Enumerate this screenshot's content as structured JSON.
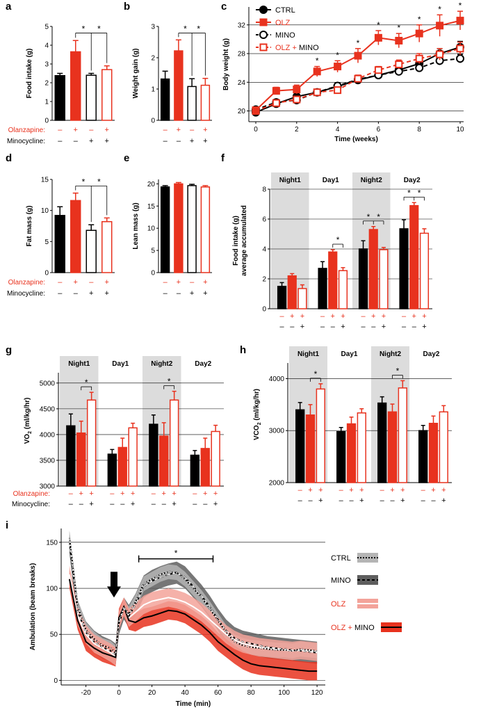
{
  "colors": {
    "ctrl": "#000000",
    "olz": "#e8321e",
    "mino_fill": "#ffffff",
    "mino_edge": "#000000",
    "shade": "#dcdcdc"
  },
  "row_labels": {
    "olanzapine": "Olanzapine:",
    "minocycline": "Minocycline:",
    "plus": "+",
    "minus": "–"
  },
  "chart_data": [
    {
      "panel": "a",
      "type": "bar",
      "ylabel": "Food intake (g)",
      "ylim": [
        0,
        5
      ],
      "yticks": [
        0,
        1,
        2,
        3,
        4,
        5
      ],
      "groups": [
        "CTRL",
        "OLZ",
        "MINO",
        "OLZ + MINO"
      ],
      "values": [
        2.38,
        3.65,
        2.4,
        2.7
      ],
      "errors": [
        0.12,
        0.6,
        0.1,
        0.2
      ],
      "olanzapine": [
        "–",
        "+",
        "–",
        "+"
      ],
      "minocycline": [
        "–",
        "–",
        "+",
        "+"
      ],
      "significance": [
        "*",
        "*"
      ]
    },
    {
      "panel": "b",
      "type": "bar",
      "ylabel": "Weight gain (g)",
      "ylim": [
        0,
        3
      ],
      "yticks": [
        0,
        1,
        2,
        3
      ],
      "groups": [
        "CTRL",
        "OLZ",
        "MINO",
        "OLZ + MINO"
      ],
      "values": [
        1.32,
        2.22,
        1.08,
        1.12
      ],
      "errors": [
        0.25,
        0.35,
        0.25,
        0.22
      ],
      "olanzapine": [
        "–",
        "+",
        "–",
        "+"
      ],
      "minocycline": [
        "–",
        "–",
        "+",
        "+"
      ],
      "significance": [
        "*",
        "*"
      ]
    },
    {
      "panel": "c",
      "type": "line",
      "xlabel": "Time (weeks)",
      "ylabel": "Body weight (g)",
      "xlim": [
        0,
        10
      ],
      "ylim": [
        18.5,
        34.5
      ],
      "xticks": [
        0,
        2,
        4,
        6,
        8,
        10
      ],
      "yticks": [
        20,
        24,
        28,
        32
      ],
      "x": [
        0,
        1,
        2,
        3,
        4,
        5,
        6,
        7,
        8,
        9,
        10
      ],
      "series": [
        {
          "name": "CTRL",
          "values": [
            19.8,
            21.0,
            22.0,
            22.6,
            23.4,
            24.3,
            25.0,
            25.7,
            26.6,
            28.0,
            28.9
          ],
          "errors": [
            0.3,
            0.4,
            0.4,
            0.4,
            0.5,
            0.5,
            0.5,
            0.6,
            0.6,
            0.7,
            0.8
          ]
        },
        {
          "name": "OLZ",
          "values": [
            20.1,
            22.8,
            23.0,
            25.5,
            26.2,
            27.7,
            30.2,
            29.8,
            30.8,
            31.9,
            32.6
          ],
          "errors": [
            0.3,
            0.5,
            0.6,
            0.7,
            0.8,
            1.0,
            1.0,
            1.0,
            1.2,
            1.5,
            1.3
          ]
        },
        {
          "name": "MINO",
          "values": [
            20.2,
            21.2,
            21.5,
            22.6,
            23.5,
            24.4,
            25.0,
            25.5,
            26.0,
            27.0,
            27.3
          ],
          "errors": [
            0.3,
            0.4,
            0.4,
            0.4,
            0.4,
            0.4,
            0.5,
            0.5,
            0.5,
            0.6,
            0.6
          ]
        },
        {
          "name": "OLZ + MINO",
          "values": [
            20.0,
            21.1,
            21.6,
            22.6,
            22.9,
            24.5,
            25.7,
            26.5,
            27.3,
            27.9,
            28.7
          ],
          "errors": [
            0.3,
            0.4,
            0.4,
            0.4,
            0.4,
            0.5,
            0.5,
            0.6,
            0.7,
            0.8,
            0.9
          ]
        }
      ],
      "legend": [
        "CTRL",
        "OLZ",
        "MINO",
        "OLZ + MINO"
      ],
      "significance_x": [
        3,
        4,
        5,
        6,
        7,
        8,
        9,
        10
      ]
    },
    {
      "panel": "d",
      "type": "bar",
      "ylabel": "Fat mass (g)",
      "ylim": [
        0,
        15
      ],
      "yticks": [
        0,
        5,
        10,
        15
      ],
      "groups": [
        "CTRL",
        "OLZ",
        "MINO",
        "OLZ + MINO"
      ],
      "values": [
        9.2,
        11.6,
        6.8,
        8.2
      ],
      "errors": [
        1.4,
        1.2,
        0.9,
        0.6
      ],
      "olanzapine": [
        "–",
        "+",
        "–",
        "+"
      ],
      "minocycline": [
        "–",
        "–",
        "+",
        "+"
      ],
      "significance": [
        "*",
        "*"
      ]
    },
    {
      "panel": "e",
      "type": "bar",
      "ylabel": "Lean mass (g)",
      "ylim": [
        0,
        21
      ],
      "yticks": [
        0,
        5,
        10,
        15,
        20
      ],
      "groups": [
        "CTRL",
        "OLZ",
        "MINO",
        "OLZ + MINO"
      ],
      "values": [
        19.3,
        20.0,
        19.6,
        19.3
      ],
      "errors": [
        0.3,
        0.3,
        0.3,
        0.3
      ],
      "olanzapine": [
        "–",
        "+",
        "–",
        "+"
      ],
      "minocycline": [
        "–",
        "–",
        "+",
        "+"
      ]
    },
    {
      "panel": "f",
      "type": "bar",
      "ylabel": [
        "Food intake (g)",
        "average accumulated"
      ],
      "ylim": [
        0,
        8
      ],
      "yticks": [
        0,
        2,
        4,
        6,
        8
      ],
      "periods": [
        "Night1",
        "Day1",
        "Night2",
        "Day2"
      ],
      "shaded": [
        true,
        false,
        true,
        false
      ],
      "series": [
        {
          "name": "CTRL",
          "values": [
            1.5,
            2.7,
            4.0,
            5.35
          ],
          "errors": [
            0.25,
            0.45,
            0.55,
            0.6
          ]
        },
        {
          "name": "OLZ",
          "values": [
            2.2,
            3.8,
            5.3,
            6.9
          ],
          "errors": [
            0.15,
            0.15,
            0.2,
            0.2
          ]
        },
        {
          "name": "OLZ + MINO",
          "values": [
            1.35,
            2.55,
            3.95,
            5.05
          ],
          "errors": [
            0.25,
            0.2,
            0.15,
            0.3
          ]
        }
      ],
      "olanzapine": [
        "–",
        "+",
        "+"
      ],
      "minocycline": [
        "–",
        "–",
        "+"
      ],
      "significance": [
        "*",
        "* *",
        "* *"
      ]
    },
    {
      "panel": "g",
      "type": "bar",
      "ylabel": "VO2 (ml/kg/hr)",
      "ylim": [
        3000,
        5200
      ],
      "yticks": [
        3000,
        3500,
        4000,
        4500,
        5000
      ],
      "periods": [
        "Night1",
        "Day1",
        "Night2",
        "Day2"
      ],
      "shaded": [
        true,
        false,
        true,
        false
      ],
      "series": [
        {
          "name": "CTRL",
          "values": [
            4170,
            3620,
            4200,
            3600
          ],
          "errors": [
            230,
            90,
            180,
            90
          ]
        },
        {
          "name": "OLZ",
          "values": [
            4030,
            3750,
            3970,
            3730
          ],
          "errors": [
            230,
            180,
            260,
            200
          ]
        },
        {
          "name": "OLZ + MINO",
          "values": [
            4670,
            4130,
            4670,
            4060
          ],
          "errors": [
            150,
            90,
            170,
            120
          ]
        }
      ],
      "olanzapine": [
        "–",
        "+",
        "+"
      ],
      "minocycline": [
        "–",
        "–",
        "+"
      ],
      "significance": [
        "*",
        "*"
      ]
    },
    {
      "panel": "h",
      "type": "bar",
      "ylabel": "VCO2 (ml/kg/hr)",
      "ylim": [
        2000,
        4300
      ],
      "yticks": [
        2000,
        3000,
        4000
      ],
      "periods": [
        "Night1",
        "Day1",
        "Night2",
        "Day2"
      ],
      "shaded": [
        true,
        false,
        true,
        false
      ],
      "series": [
        {
          "name": "CTRL",
          "values": [
            3400,
            2980,
            3530,
            3000
          ],
          "errors": [
            140,
            80,
            120,
            100
          ]
        },
        {
          "name": "OLZ",
          "values": [
            3300,
            3130,
            3360,
            3140
          ],
          "errors": [
            200,
            130,
            150,
            140
          ]
        },
        {
          "name": "OLZ + MINO",
          "values": [
            3800,
            3340,
            3820,
            3360
          ],
          "errors": [
            100,
            80,
            140,
            120
          ]
        }
      ],
      "olanzapine": [
        "–",
        "+",
        "+"
      ],
      "minocycline": [
        "–",
        "–",
        "+"
      ],
      "significance": [
        "*",
        "*"
      ]
    },
    {
      "panel": "i",
      "type": "line",
      "xlabel": "Time (min)",
      "ylabel": "Ambulation (beam breaks)",
      "xlim": [
        -35,
        125
      ],
      "ylim": [
        -5,
        165
      ],
      "xticks": [
        -20,
        0,
        20,
        40,
        60,
        80,
        100,
        120
      ],
      "yticks": [
        0,
        50,
        100,
        150
      ],
      "x": [
        -30,
        -25,
        -20,
        -15,
        -10,
        -5,
        -2,
        0,
        3,
        6,
        10,
        15,
        20,
        25,
        30,
        35,
        40,
        45,
        50,
        55,
        60,
        65,
        70,
        75,
        80,
        85,
        90,
        95,
        100,
        105,
        110,
        115,
        120
      ],
      "series": [
        {
          "name": "CTRL",
          "values": [
            155,
            80,
            55,
            45,
            38,
            35,
            30,
            65,
            80,
            72,
            85,
            105,
            110,
            115,
            118,
            117,
            110,
            100,
            90,
            78,
            65,
            52,
            42,
            38,
            36,
            35,
            34,
            33,
            33,
            32,
            34,
            33,
            32
          ],
          "band": 8
        },
        {
          "name": "MINO",
          "values": [
            150,
            75,
            52,
            42,
            36,
            32,
            28,
            62,
            78,
            70,
            82,
            102,
            108,
            112,
            115,
            117,
            112,
            102,
            92,
            80,
            66,
            54,
            46,
            42,
            40,
            38,
            36,
            35,
            34,
            33,
            32,
            31,
            30
          ],
          "band": 12
        },
        {
          "name": "OLZ",
          "values": [
            115,
            70,
            50,
            40,
            35,
            30,
            26,
            65,
            80,
            68,
            74,
            82,
            86,
            88,
            90,
            88,
            85,
            80,
            74,
            66,
            58,
            50,
            44,
            40,
            38,
            36,
            35,
            34,
            33,
            32,
            33,
            32,
            31
          ],
          "band": 10
        },
        {
          "name": "OLZ + MINO",
          "values": [
            110,
            65,
            42,
            35,
            30,
            27,
            25,
            68,
            80,
            65,
            63,
            68,
            70,
            73,
            76,
            75,
            72,
            66,
            60,
            52,
            42,
            35,
            28,
            22,
            18,
            16,
            15,
            14,
            13,
            12,
            11,
            10,
            10
          ],
          "band": 10
        }
      ],
      "legend": [
        "CTRL",
        "MINO",
        "OLZ",
        "OLZ + MINO"
      ],
      "significance": "*",
      "significance_range": [
        12,
        57
      ],
      "arrow_x": -3
    }
  ]
}
